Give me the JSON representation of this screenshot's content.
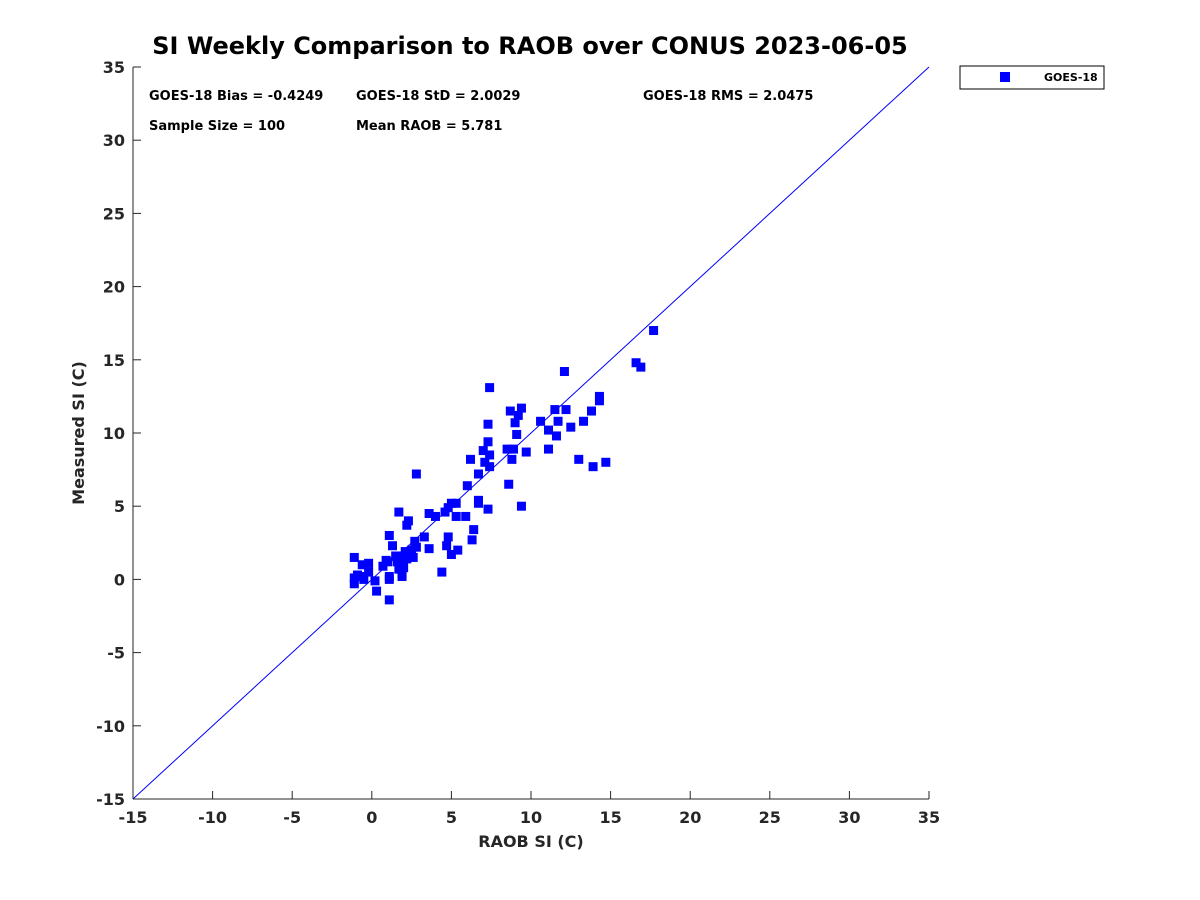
{
  "chart_data": {
    "type": "scatter",
    "title": "SI Weekly Comparison to RAOB over CONUS 2023-06-05",
    "xlabel": "RAOB SI (C)",
    "ylabel": "Measured SI (C)",
    "xlim": [
      -15,
      35
    ],
    "ylim": [
      -15,
      35
    ],
    "xticks": [
      "-15",
      "-10",
      "-5",
      "0",
      "5",
      "10",
      "15",
      "20",
      "25",
      "30",
      "35"
    ],
    "yticks": [
      "-15",
      "-10",
      "-5",
      "0",
      "5",
      "10",
      "15",
      "20",
      "25",
      "30",
      "35"
    ],
    "legend_position": "top-right-outside",
    "series": [
      {
        "name": "GOES-18",
        "color": "#0000ff",
        "marker": "square",
        "points": [
          [
            17.7,
            17.0
          ],
          [
            16.6,
            14.8
          ],
          [
            16.9,
            14.5
          ],
          [
            12.1,
            14.2
          ],
          [
            7.4,
            13.1
          ],
          [
            14.3,
            12.5
          ],
          [
            14.3,
            12.2
          ],
          [
            9.4,
            11.7
          ],
          [
            11.5,
            11.6
          ],
          [
            12.2,
            11.6
          ],
          [
            8.7,
            11.5
          ],
          [
            13.8,
            11.5
          ],
          [
            9.2,
            11.2
          ],
          [
            10.6,
            10.8
          ],
          [
            11.7,
            10.8
          ],
          [
            13.3,
            10.8
          ],
          [
            9.0,
            10.7
          ],
          [
            7.3,
            10.6
          ],
          [
            12.5,
            10.4
          ],
          [
            11.1,
            10.2
          ],
          [
            9.1,
            9.9
          ],
          [
            11.6,
            9.8
          ],
          [
            7.3,
            9.4
          ],
          [
            11.1,
            8.9
          ],
          [
            8.5,
            8.9
          ],
          [
            8.9,
            8.9
          ],
          [
            7.0,
            8.8
          ],
          [
            9.7,
            8.7
          ],
          [
            7.4,
            8.5
          ],
          [
            6.2,
            8.2
          ],
          [
            8.8,
            8.2
          ],
          [
            13.0,
            8.2
          ],
          [
            7.1,
            8.0
          ],
          [
            14.7,
            8.0
          ],
          [
            7.4,
            7.7
          ],
          [
            13.9,
            7.7
          ],
          [
            2.8,
            7.2
          ],
          [
            6.7,
            7.2
          ],
          [
            8.6,
            6.5
          ],
          [
            6.0,
            6.4
          ],
          [
            6.7,
            5.4
          ],
          [
            6.7,
            5.2
          ],
          [
            5.0,
            5.2
          ],
          [
            5.3,
            5.2
          ],
          [
            9.4,
            5.0
          ],
          [
            4.8,
            4.9
          ],
          [
            7.3,
            4.8
          ],
          [
            4.6,
            4.6
          ],
          [
            1.7,
            4.6
          ],
          [
            3.6,
            4.5
          ],
          [
            4.0,
            4.3
          ],
          [
            5.3,
            4.3
          ],
          [
            5.9,
            4.3
          ],
          [
            2.3,
            4.0
          ],
          [
            2.2,
            3.7
          ],
          [
            6.4,
            3.4
          ],
          [
            1.1,
            3.0
          ],
          [
            4.8,
            2.9
          ],
          [
            3.3,
            2.9
          ],
          [
            6.3,
            2.7
          ],
          [
            2.7,
            2.6
          ],
          [
            1.3,
            2.3
          ],
          [
            4.7,
            2.3
          ],
          [
            2.8,
            2.2
          ],
          [
            3.6,
            2.1
          ],
          [
            2.5,
            2.0
          ],
          [
            5.4,
            2.0
          ],
          [
            2.1,
            1.9
          ],
          [
            2.3,
            1.8
          ],
          [
            2.4,
            1.7
          ],
          [
            1.5,
            1.6
          ],
          [
            2.0,
            1.6
          ],
          [
            5.0,
            1.7
          ],
          [
            -1.1,
            1.5
          ],
          [
            2.6,
            1.5
          ],
          [
            2.2,
            1.4
          ],
          [
            1.9,
            1.4
          ],
          [
            0.9,
            1.3
          ],
          [
            1.6,
            1.2
          ],
          [
            -0.2,
            1.1
          ],
          [
            1.0,
            1.2
          ],
          [
            -0.6,
            1.0
          ],
          [
            0.7,
            0.9
          ],
          [
            1.8,
            0.9
          ],
          [
            2.0,
            0.8
          ],
          [
            1.7,
            0.7
          ],
          [
            4.4,
            0.5
          ],
          [
            -0.2,
            0.5
          ],
          [
            1.9,
            0.4
          ],
          [
            -0.9,
            0.3
          ],
          [
            1.1,
            0.2
          ],
          [
            1.9,
            0.2
          ],
          [
            -0.6,
            0.2
          ],
          [
            -1.1,
            0.1
          ],
          [
            1.1,
            0.0
          ],
          [
            0.2,
            -0.1
          ],
          [
            -1.1,
            -0.3
          ],
          [
            -0.5,
            0.0
          ],
          [
            0.3,
            -0.8
          ],
          [
            1.1,
            -1.4
          ]
        ]
      }
    ],
    "diagonal": {
      "from": [
        -15,
        -15
      ],
      "to": [
        35,
        35
      ],
      "color": "#0000ff"
    }
  },
  "stats": {
    "bias": "GOES-18 Bias = -0.4249",
    "std": "GOES-18 StD = 2.0029",
    "rms": "GOES-18 RMS = 2.0475",
    "sample_size": "Sample Size = 100",
    "mean_raob": "Mean RAOB = 5.781"
  }
}
